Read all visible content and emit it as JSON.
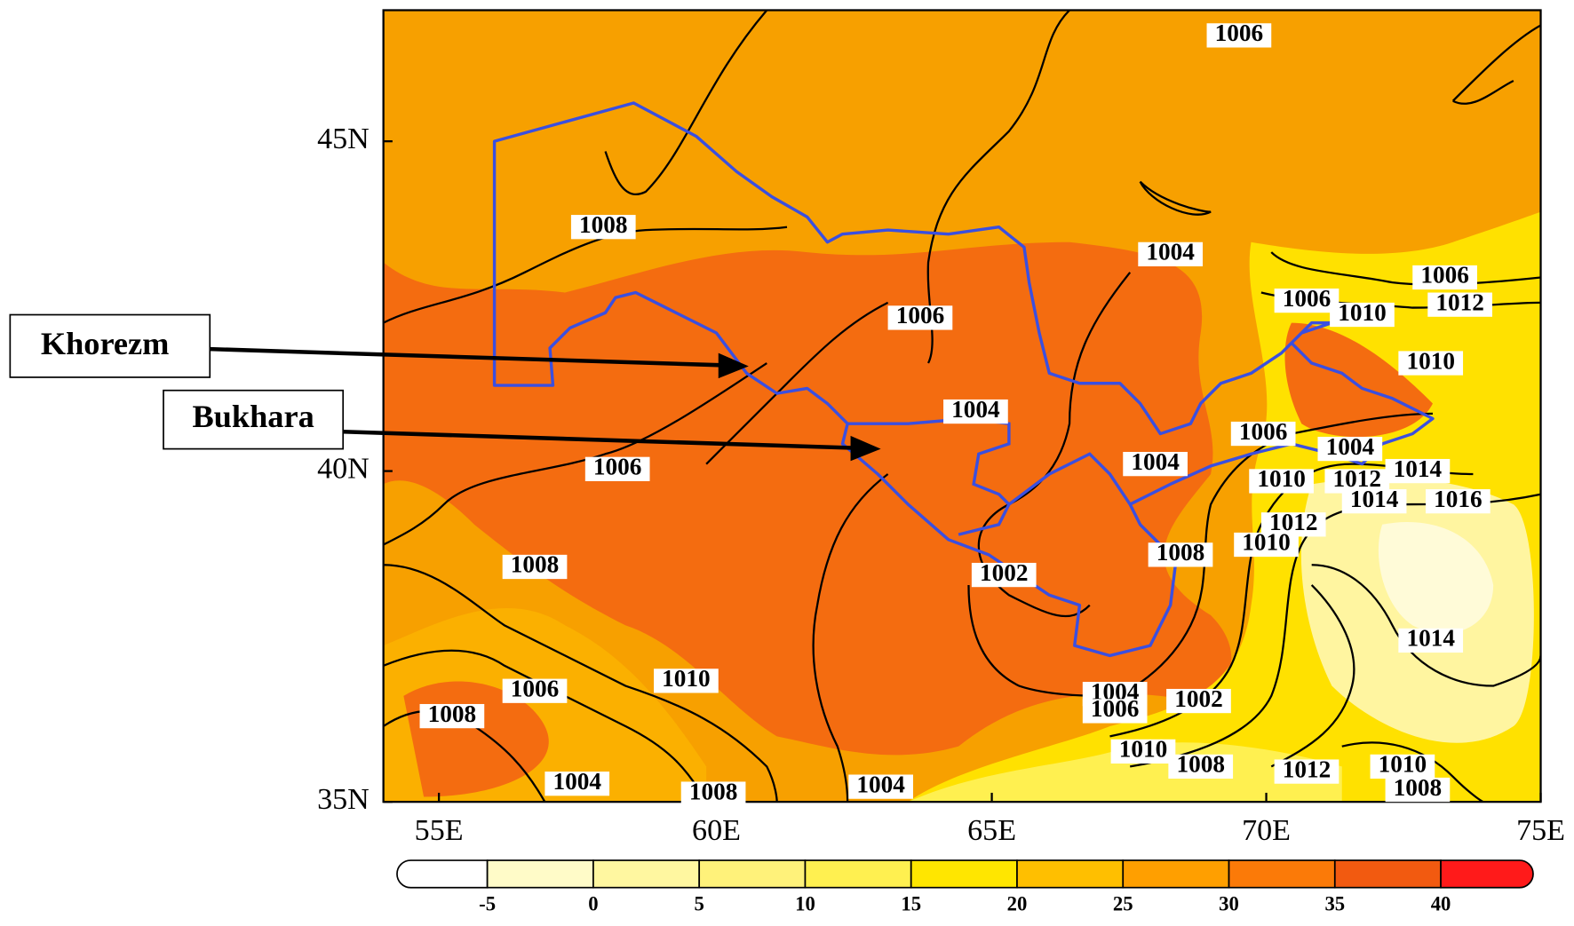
{
  "map": {
    "x_labels": [
      "55E",
      "60E",
      "65E",
      "70E",
      "75E"
    ],
    "y_labels": [
      "45N",
      "40N",
      "35N"
    ],
    "annotations": [
      "Khorezm",
      "Bukhara"
    ],
    "contour_labels": [
      1006,
      1008,
      1004,
      1006,
      1006,
      1012,
      1006,
      1010,
      1010,
      1004,
      1006,
      1004,
      1004,
      1014,
      1010,
      1012,
      1014,
      1016,
      1006,
      1012,
      1010,
      1008,
      1008,
      1002,
      1014,
      1010,
      1006,
      1008,
      1004,
      1006,
      1002,
      1010,
      1008,
      1012,
      1010,
      1008,
      1004,
      1008,
      1004
    ],
    "colorbar": {
      "levels": [
        -5,
        0,
        5,
        10,
        15,
        20,
        25,
        30,
        35,
        40
      ],
      "colors": [
        "#ffffff",
        "#fffbc8",
        "#fff7a0",
        "#fff27a",
        "#fff050",
        "#ffe600",
        "#ffbf00",
        "#ff9f00",
        "#fb7a08",
        "#f25a10",
        "#ff1a1a"
      ]
    }
  }
}
